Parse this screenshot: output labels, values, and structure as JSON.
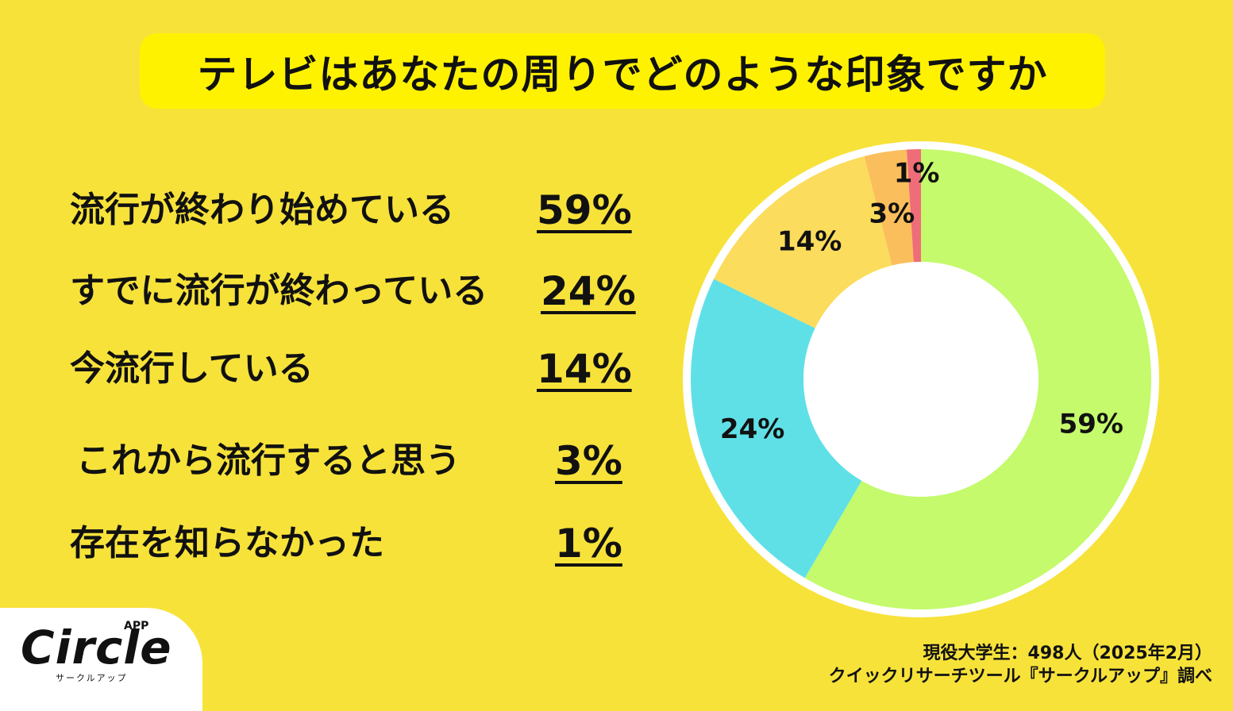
{
  "title": "テレビはあなたの周りでどのような印象ですか",
  "rows": [
    {
      "label": "流行が終わり始めている",
      "pct": "59%"
    },
    {
      "label": "すでに流行が終わっている",
      "pct": "24%"
    },
    {
      "label": "今流行している",
      "pct": "14%"
    },
    {
      "label": "これから流行すると思う",
      "pct": "3%"
    },
    {
      "label": "存在を知らなかった",
      "pct": "1%"
    }
  ],
  "chart_data": {
    "type": "pie",
    "categories": [
      "流行が終わり始めている",
      "すでに流行が終わっている",
      "今流行している",
      "これから流行すると思う",
      "存在を知らなかった"
    ],
    "values": [
      59,
      24,
      14,
      3,
      1
    ],
    "labels": [
      "59%",
      "24%",
      "14%",
      "3%",
      "1%"
    ],
    "colors": [
      "#c4fa6c",
      "#5fe0e6",
      "#fbdc5c",
      "#fbbe5c",
      "#ef6d78"
    ]
  },
  "logo": {
    "main": "Circle",
    "app": "APP",
    "sub": "サークルアップ"
  },
  "footnote": {
    "line1": "現役大学生：498人（2025年2月）",
    "line2": "クイックリサーチツール『サークルアップ』調べ"
  }
}
